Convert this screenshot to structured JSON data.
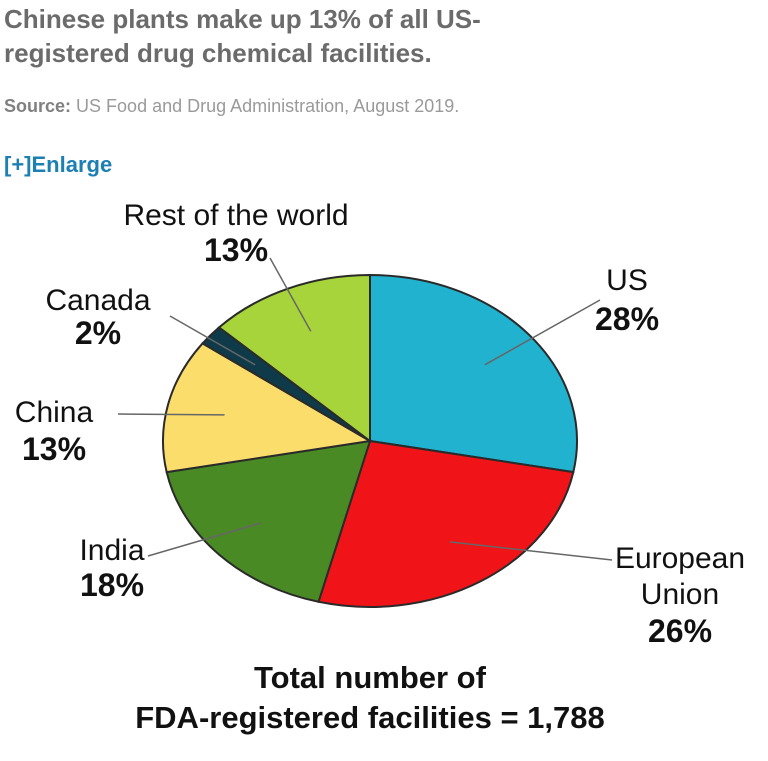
{
  "header": {
    "title_line1": "Chinese plants make up 13% of all US-",
    "title_line2": "registered drug chemical facilities.",
    "source_label": "Source:",
    "source_text": "US Food and Drug Administration, August 2019.",
    "enlarge_label": "[+]Enlarge"
  },
  "chart_data": {
    "type": "pie",
    "unit": "%",
    "slices": [
      {
        "label": "US",
        "value": 28,
        "pct_label": "28%",
        "color": "#20b2cf"
      },
      {
        "label": "European Union",
        "value": 26,
        "pct_label": "26%",
        "color": "#f01418"
      },
      {
        "label": "India",
        "value": 18,
        "pct_label": "18%",
        "color": "#4a8a25"
      },
      {
        "label": "China",
        "value": 13,
        "pct_label": "13%",
        "color": "#fbdd6b"
      },
      {
        "label": "Canada",
        "value": 2,
        "pct_label": "2%",
        "color": "#0f3a4a"
      },
      {
        "label": "Rest of the world",
        "value": 13,
        "pct_label": "13%",
        "color": "#a7d43a"
      }
    ],
    "footer_line1": "Total number of",
    "footer_line2": "FDA-registered facilities = 1,788"
  }
}
